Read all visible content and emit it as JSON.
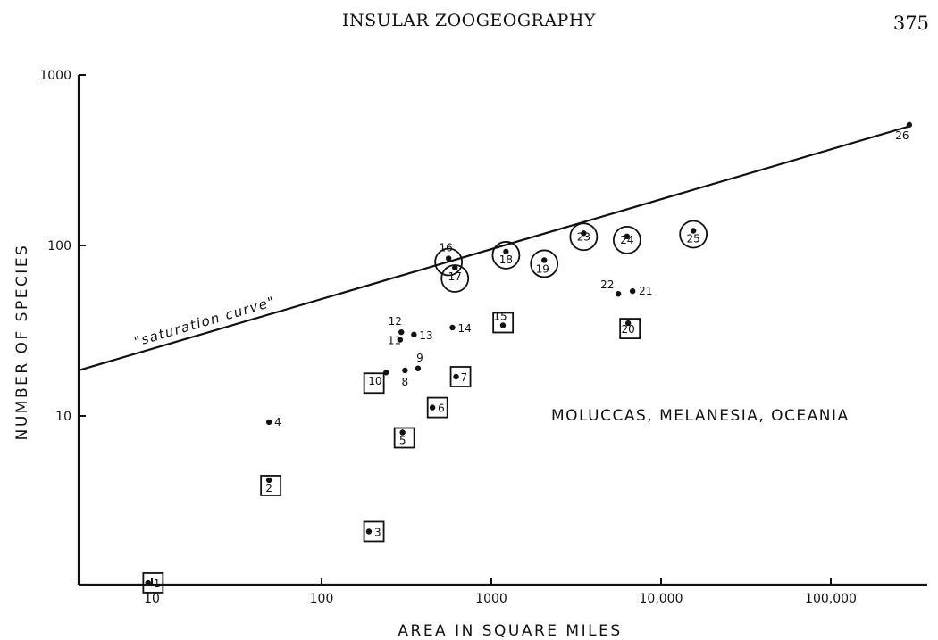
{
  "header": {
    "title": "INSULAR ZOOGEOGRAPHY",
    "page_number": "375"
  },
  "chart_data": {
    "type": "scatter",
    "xlabel": "AREA IN SQUARE MILES",
    "ylabel": "NUMBER OF SPECIES",
    "x_scale": "log",
    "y_scale": "log",
    "xlim": [
      4,
      300000
    ],
    "ylim": [
      1,
      1000
    ],
    "x_ticks": [
      {
        "value": 10,
        "label": "10"
      },
      {
        "value": 100,
        "label": "100"
      },
      {
        "value": 1000,
        "label": "1000"
      },
      {
        "value": 10000,
        "label": "10,000"
      },
      {
        "value": 100000,
        "label": "100,000"
      }
    ],
    "y_ticks": [
      {
        "value": 10,
        "label": "10"
      },
      {
        "value": 100,
        "label": "100"
      },
      {
        "value": 1000,
        "label": "1000"
      }
    ],
    "annotation": "MOLUCCAS, MELANESIA, OCEANIA",
    "curve": {
      "label": "\"saturation curve\"",
      "points": [
        [
          4,
          18.5
        ],
        [
          290000,
          500
        ]
      ]
    },
    "points": [
      {
        "id": "1",
        "x": 9.5,
        "y": 1.05,
        "mark": "square"
      },
      {
        "id": "2",
        "x": 49,
        "y": 4.2,
        "mark": "square"
      },
      {
        "id": "3",
        "x": 190,
        "y": 2.1,
        "mark": "square"
      },
      {
        "id": "4",
        "x": 49,
        "y": 9.2,
        "mark": "none"
      },
      {
        "id": "5",
        "x": 300,
        "y": 8.0,
        "mark": "square"
      },
      {
        "id": "6",
        "x": 450,
        "y": 11.2,
        "mark": "square"
      },
      {
        "id": "7",
        "x": 620,
        "y": 17.0,
        "mark": "square"
      },
      {
        "id": "8",
        "x": 310,
        "y": 18.5,
        "mark": "none"
      },
      {
        "id": "9",
        "x": 370,
        "y": 19.0,
        "mark": "none"
      },
      {
        "id": "10",
        "x": 240,
        "y": 18.0,
        "mark": "square"
      },
      {
        "id": "11",
        "x": 290,
        "y": 28.0,
        "mark": "none"
      },
      {
        "id": "12",
        "x": 295,
        "y": 31.0,
        "mark": "none"
      },
      {
        "id": "13",
        "x": 350,
        "y": 30.0,
        "mark": "none"
      },
      {
        "id": "14",
        "x": 590,
        "y": 33.0,
        "mark": "none"
      },
      {
        "id": "15",
        "x": 1170,
        "y": 34.0,
        "mark": "square"
      },
      {
        "id": "16",
        "x": 560,
        "y": 84.0,
        "mark": "circle"
      },
      {
        "id": "17",
        "x": 610,
        "y": 74.0,
        "mark": "circle"
      },
      {
        "id": "18",
        "x": 1220,
        "y": 92.0,
        "mark": "circle"
      },
      {
        "id": "19",
        "x": 2050,
        "y": 82.0,
        "mark": "circle"
      },
      {
        "id": "20",
        "x": 6400,
        "y": 35.0,
        "mark": "square"
      },
      {
        "id": "21",
        "x": 6800,
        "y": 54.0,
        "mark": "none"
      },
      {
        "id": "22",
        "x": 5600,
        "y": 52.0,
        "mark": "none"
      },
      {
        "id": "23",
        "x": 3500,
        "y": 118.0,
        "mark": "circle"
      },
      {
        "id": "24",
        "x": 6300,
        "y": 113.0,
        "mark": "circle"
      },
      {
        "id": "25",
        "x": 15500,
        "y": 122.0,
        "mark": "circle"
      },
      {
        "id": "26",
        "x": 290000,
        "y": 510.0,
        "mark": "none"
      }
    ]
  }
}
